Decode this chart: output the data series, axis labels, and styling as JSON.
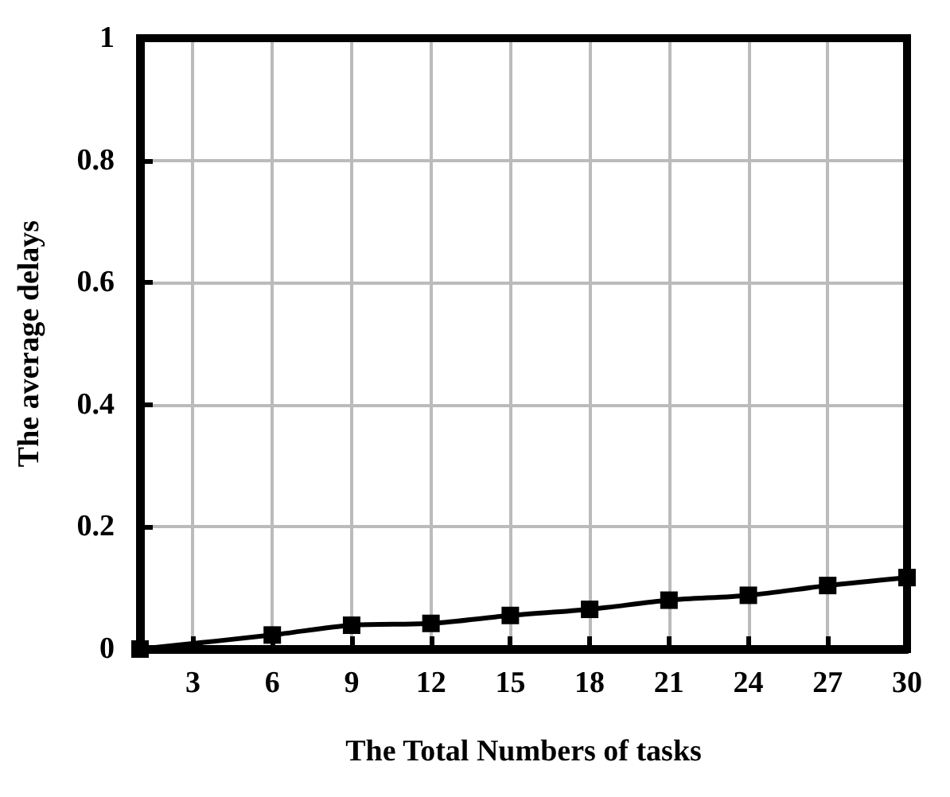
{
  "chart_data": {
    "type": "line",
    "xlabel": "The Total Numbers of tasks",
    "ylabel": "The average delays",
    "x": [
      1,
      6,
      9,
      12,
      15,
      18,
      21,
      24,
      27,
      30
    ],
    "series": [
      {
        "color": "#000000",
        "values": [
          0,
          0.023,
          0.039,
          0.042,
          0.055,
          0.065,
          0.08,
          0.088,
          0.104,
          0.117
        ]
      }
    ],
    "xlim": [
      1,
      30
    ],
    "xticks": [
      3,
      6,
      9,
      12,
      15,
      18,
      21,
      24,
      27,
      30
    ],
    "ylim": [
      0,
      1
    ],
    "yticks": [
      0,
      0.2,
      0.4,
      0.6,
      0.8,
      1
    ],
    "grid": true,
    "marker": "square",
    "line_style": "solid"
  }
}
